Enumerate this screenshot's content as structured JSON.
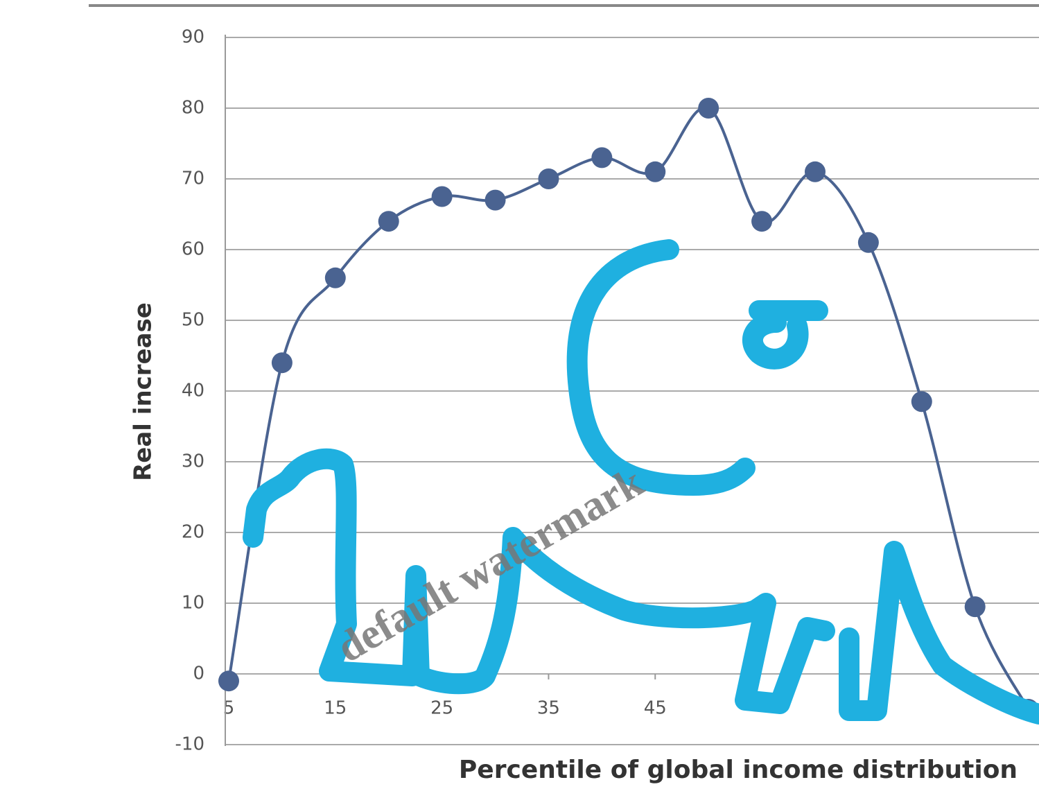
{
  "chart_data": {
    "type": "line",
    "xlabel": "Percentile of global income distribution",
    "ylabel": "Real increase",
    "x": [
      5,
      10,
      15,
      20,
      25,
      30,
      35,
      40,
      45,
      50,
      55,
      60,
      65,
      70,
      75,
      80
    ],
    "series": [
      {
        "color": "#4a6391",
        "values": [
          -1,
          44,
          56,
          64,
          67.5,
          67,
          70,
          73,
          71,
          80,
          64,
          71,
          61,
          38.5,
          9.5,
          -5
        ]
      }
    ],
    "xlim": [
      5,
      81
    ],
    "ylim": [
      -10,
      90
    ],
    "xticks": [
      5,
      15,
      25,
      35,
      45
    ],
    "yticks": [
      -10,
      0,
      10,
      20,
      30,
      40,
      50,
      60,
      70,
      80,
      90
    ],
    "grid": true,
    "watermark": "default watermark"
  }
}
